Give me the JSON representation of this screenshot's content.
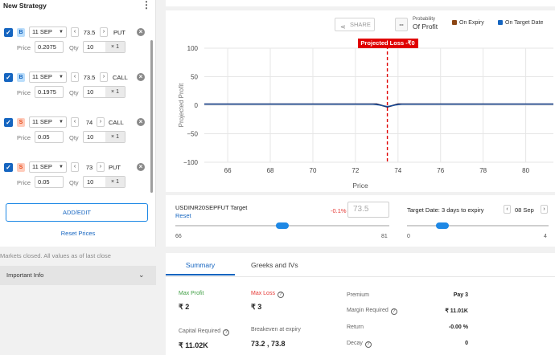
{
  "strategy": {
    "title": "New Strategy",
    "menu_icon": "kebab-icon",
    "legs": [
      {
        "side": "B",
        "expiry": "11 SEP",
        "strike": "73.5",
        "type": "PUT",
        "price_label": "Price",
        "price": "0.2075",
        "qty_label": "Qty",
        "qty": "10",
        "lots": "× 1"
      },
      {
        "side": "B",
        "expiry": "11 SEP",
        "strike": "73.5",
        "type": "CALL",
        "price_label": "Price",
        "price": "0.1975",
        "qty_label": "Qty",
        "qty": "10",
        "lots": "× 1"
      },
      {
        "side": "S",
        "expiry": "11 SEP",
        "strike": "74",
        "type": "CALL",
        "price_label": "Price",
        "price": "0.05",
        "qty_label": "Qty",
        "qty": "10",
        "lots": "× 1"
      },
      {
        "side": "S",
        "expiry": "11 SEP",
        "strike": "73",
        "type": "PUT",
        "price_label": "Price",
        "price": "0.05",
        "qty_label": "Qty",
        "qty": "10",
        "lots": "× 1"
      }
    ],
    "add_edit_label": "ADD/EDIT",
    "reset_prices_label": "Reset Prices",
    "market_note": "Markets closed. All values as of last close",
    "important_info_label": "Important Info"
  },
  "toolbar": {
    "share_label": "SHARE",
    "probability_box": "--",
    "probability_line1": "Probability",
    "probability_line2": "Of Profit",
    "legend_expiry": "On Expiry",
    "legend_target": "On Target Date"
  },
  "colors": {
    "expiry": "#8b4513",
    "target": "#1565c0",
    "accent": "#1565c0",
    "loss": "#e00000",
    "profit_green": "#43a047"
  },
  "chart_data": {
    "type": "line",
    "projected_label": "Projected Loss -₹0",
    "projected_x": 73.5,
    "xlabel": "Price",
    "ylabel": "Projected Profit",
    "xlim": [
      64.9,
      81.3
    ],
    "ylim": [
      -100,
      100
    ],
    "x_ticks": [
      66,
      68,
      70,
      72,
      74,
      76,
      78,
      80
    ],
    "y_ticks": [
      100,
      50,
      0,
      -50,
      -100
    ],
    "y_tick_labels": [
      "100",
      "50",
      "0",
      "−50",
      "−100"
    ],
    "grid": true,
    "series": [
      {
        "name": "On Expiry",
        "x": [
          64.9,
          73,
          73.5,
          74,
          81.3
        ],
        "y": [
          2,
          2,
          -3,
          2,
          2
        ]
      },
      {
        "name": "On Target Date",
        "x": [
          64.9,
          72.8,
          73.5,
          74.2,
          81.3
        ],
        "y": [
          2,
          1.5,
          -2,
          1.5,
          2
        ]
      }
    ]
  },
  "target": {
    "title": "USDINR20SEPFUT Target",
    "reset_label": "Reset",
    "pct": "-0.1%",
    "value": "73.5",
    "min": "66",
    "max": "81",
    "level": 0.5,
    "date_title": "Target Date: 3 days to expiry",
    "date_value": "08 Sep",
    "date_min": "0",
    "date_max": "4",
    "date_level": 0.25
  },
  "summary": {
    "tab_summary": "Summary",
    "tab_greeks": "Greeks and IVs",
    "max_profit_label": "Max Profit",
    "max_profit": "₹ 2",
    "max_loss_label": "Max Loss",
    "max_loss": "₹ 3",
    "capital_label": "Capital Required",
    "capital": "₹ 11.02K",
    "breakeven_label": "Breakeven at expiry",
    "breakeven": "73.2 , 73.8",
    "premium_label": "Premium",
    "premium": "Pay 3",
    "margin_label": "Margin Required",
    "margin": "₹ 11.01K",
    "return_label": "Return",
    "return": "-0.00 %",
    "decay_label": "Decay",
    "decay": "0"
  }
}
